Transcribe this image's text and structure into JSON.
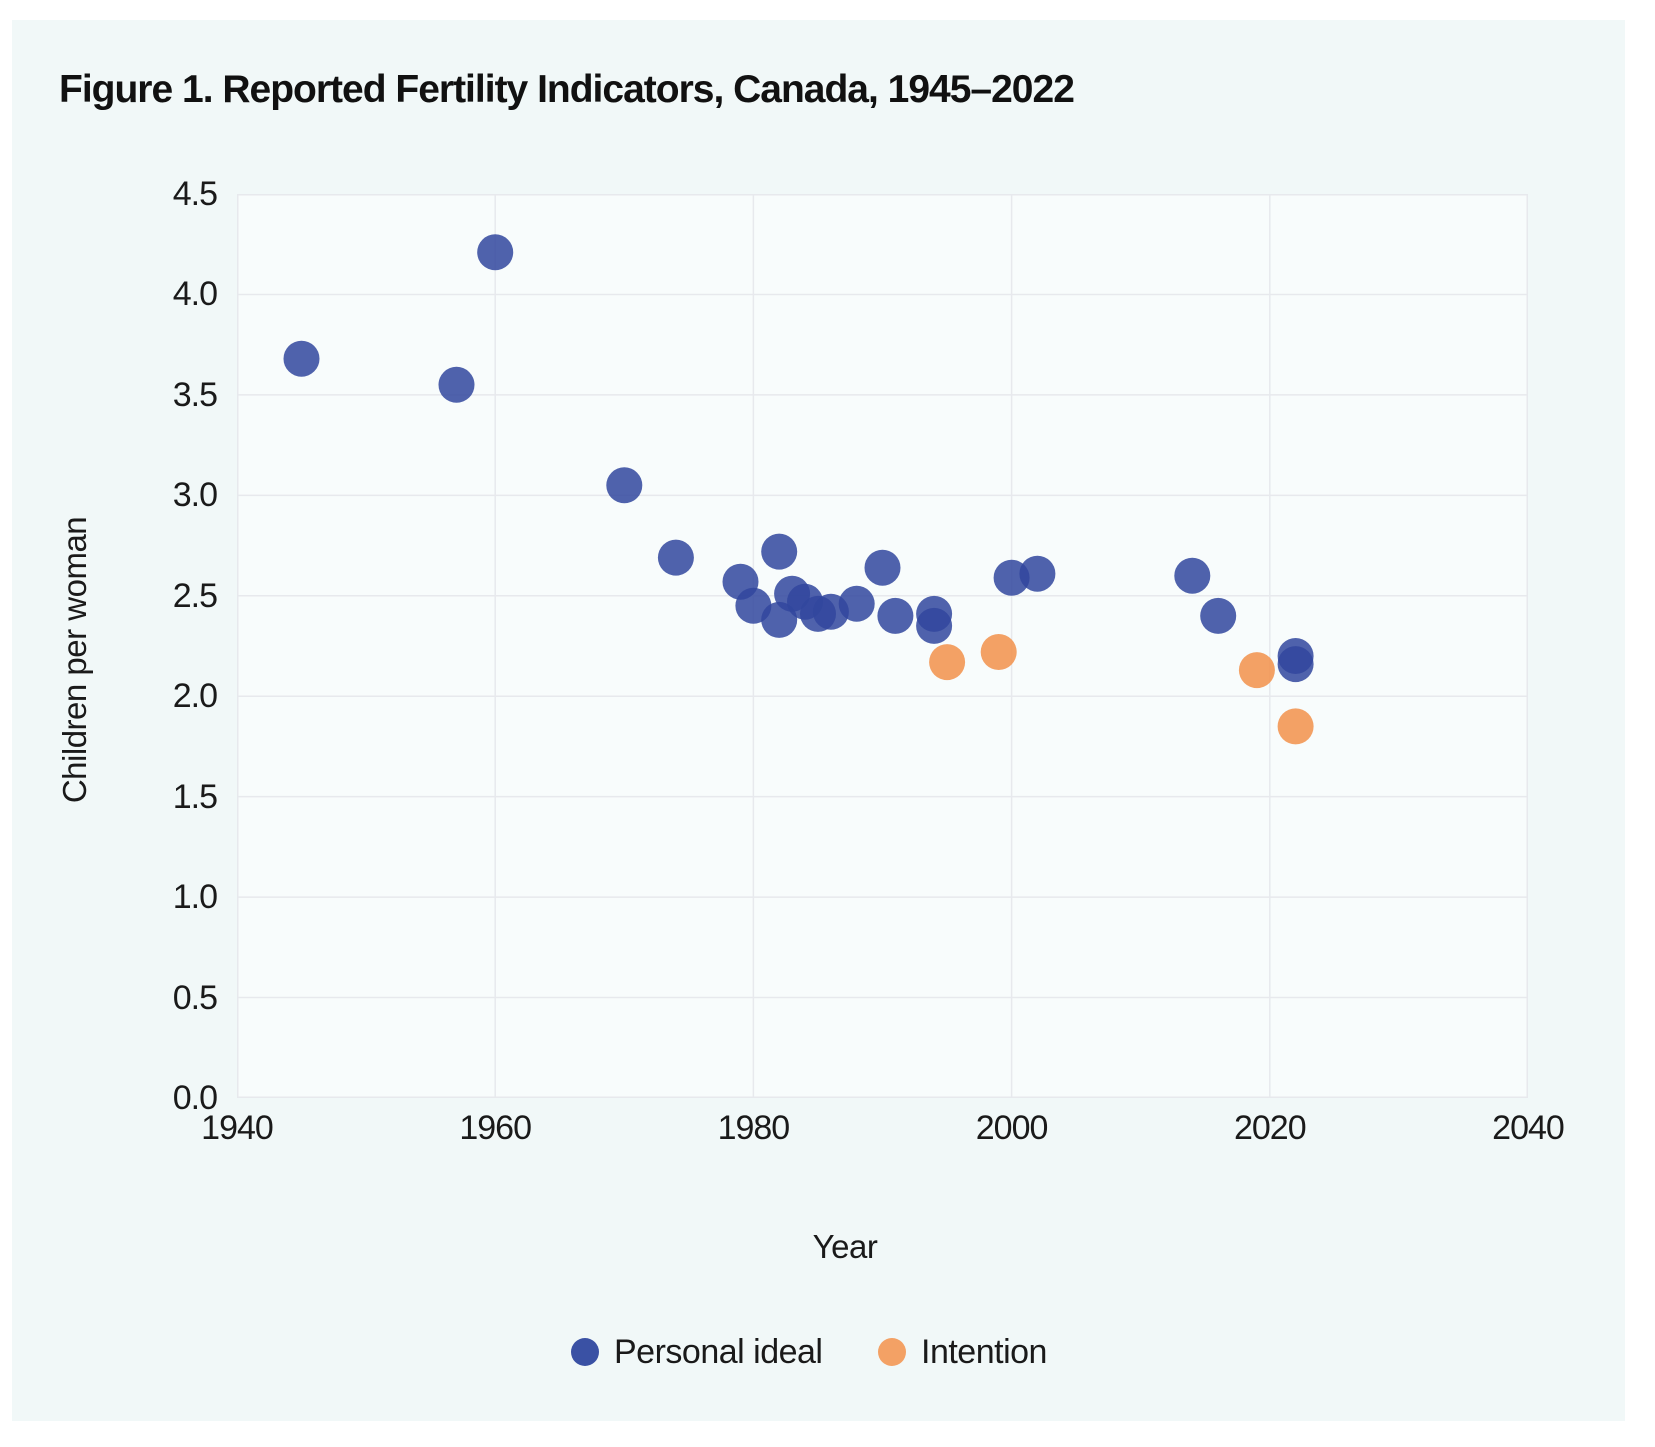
{
  "figure": {
    "title": "Figure 1. Reported Fertility Indicators, Canada, 1945–2022"
  },
  "chart_data": {
    "type": "scatter",
    "title": "Figure 1. Reported Fertility Indicators, Canada, 1945–2022",
    "xlabel": "Year",
    "ylabel": "Children per woman",
    "xlim": [
      1940,
      2040
    ],
    "ylim": [
      0,
      4.5
    ],
    "x_ticks": [
      "1940",
      "1960",
      "1980",
      "2000",
      "2020",
      "2040"
    ],
    "y_ticks": [
      "0.0",
      "0.5",
      "1.0",
      "1.5",
      "2.0",
      "2.5",
      "3.0",
      "3.5",
      "4.0",
      "4.5"
    ],
    "grid": true,
    "legend_position": "bottom",
    "marker_radius_px": 18,
    "marker_opacity": 0.85,
    "series": [
      {
        "name": "Personal ideal",
        "color": "#31479E",
        "legend_color": "#3A51A4",
        "points": [
          [
            1945,
            3.68
          ],
          [
            1957,
            3.55
          ],
          [
            1960,
            4.21
          ],
          [
            1970,
            3.05
          ],
          [
            1974,
            2.69
          ],
          [
            1979,
            2.57
          ],
          [
            1980,
            2.45
          ],
          [
            1982,
            2.72
          ],
          [
            1982,
            2.38
          ],
          [
            1983,
            2.51
          ],
          [
            1984,
            2.47
          ],
          [
            1985,
            2.41
          ],
          [
            1986,
            2.42
          ],
          [
            1988,
            2.46
          ],
          [
            1990,
            2.64
          ],
          [
            1991,
            2.4
          ],
          [
            1994,
            2.41
          ],
          [
            1994,
            2.35
          ],
          [
            2000,
            2.59
          ],
          [
            2002,
            2.61
          ],
          [
            2014,
            2.6
          ],
          [
            2016,
            2.4
          ],
          [
            2022,
            2.2
          ],
          [
            2022,
            2.16
          ]
        ]
      },
      {
        "name": "Intention",
        "color": "#F2914A",
        "legend_color": "#F3A165",
        "points": [
          [
            1995,
            2.17
          ],
          [
            1999,
            2.22
          ],
          [
            2019,
            2.13
          ],
          [
            2022,
            1.85
          ]
        ]
      }
    ],
    "style": {
      "panel_background": "#F1F8F8",
      "plot_background": "#F8FCFC",
      "gridline_color": "#E7E9ED",
      "text_color": "#1A1A1A"
    }
  }
}
